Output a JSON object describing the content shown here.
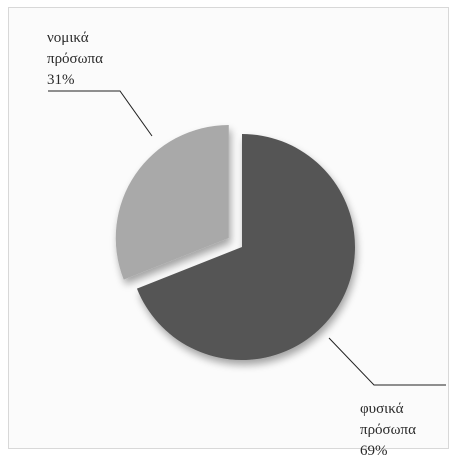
{
  "chart_data": {
    "type": "pie",
    "title": "",
    "slices": [
      {
        "label_line1": "φυσικά",
        "label_line2": "πρόσωπα",
        "percent_label": "69%",
        "value": 69,
        "color": "#555555"
      },
      {
        "label_line1": "νομικά",
        "label_line2": "πρόσωπα",
        "percent_label": "31%",
        "value": 31,
        "color": "#a9a9a9"
      }
    ],
    "exploded_slice": "νομικά πρόσωπα",
    "legend": "none"
  }
}
